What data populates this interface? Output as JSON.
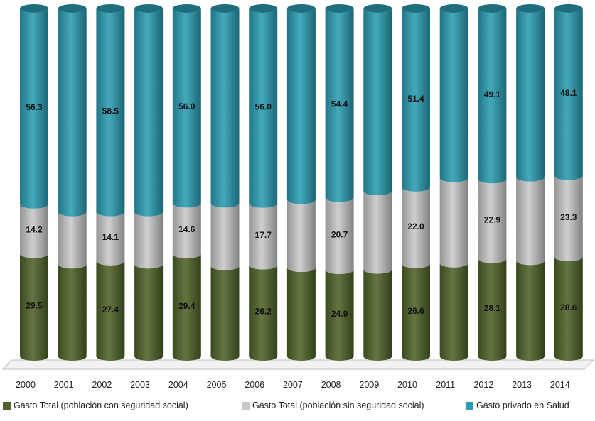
{
  "chart_data": {
    "type": "bar",
    "stacked": true,
    "percent_stacked": true,
    "title": "",
    "xlabel": "",
    "ylabel": "",
    "ylim": [
      0,
      100
    ],
    "grid": false,
    "legend_position": "bottom",
    "categories": [
      "2000",
      "2001",
      "2002",
      "2003",
      "2004",
      "2005",
      "2006",
      "2007",
      "2008",
      "2009",
      "2010",
      "2011",
      "2012",
      "2013",
      "2014"
    ],
    "series": [
      {
        "name": "Gasto Total (población con seguridad social)",
        "color": "#4f6228",
        "values": [
          29.5,
          26.5,
          27.4,
          26.5,
          29.4,
          26.0,
          26.2,
          25.5,
          24.9,
          25.0,
          26.6,
          26.8,
          28.1,
          27.5,
          28.6
        ],
        "labels": [
          "29.5",
          "",
          "27.4",
          "",
          "29.4",
          "",
          "26.2",
          "",
          "24.9",
          "",
          "26.6",
          "",
          "28.1",
          "",
          "28.6"
        ]
      },
      {
        "name": "Gasto Total (población sin seguridad social)",
        "color": "#c8c8c8",
        "values": [
          14.2,
          15.0,
          14.1,
          15.0,
          14.6,
          18.0,
          17.7,
          19.5,
          20.7,
          22.5,
          22.0,
          24.5,
          22.9,
          24.0,
          23.3
        ],
        "labels": [
          "14.2",
          "",
          "14.1",
          "",
          "14.6",
          "",
          "17.7",
          "",
          "20.7",
          "",
          "22.0",
          "",
          "22.9",
          "",
          "23.3"
        ]
      },
      {
        "name": "Gasto privado en Salud",
        "color": "#2b9db3",
        "values": [
          56.3,
          58.5,
          58.5,
          58.5,
          56.0,
          56.0,
          56.0,
          55.0,
          54.4,
          52.5,
          51.4,
          48.7,
          49.1,
          48.5,
          48.1
        ],
        "labels": [
          "56.3",
          "",
          "58.5",
          "",
          "56.0",
          "",
          "56.0",
          "",
          "54.4",
          "",
          "51.4",
          "",
          "49.1",
          "",
          "48.1"
        ]
      }
    ]
  }
}
